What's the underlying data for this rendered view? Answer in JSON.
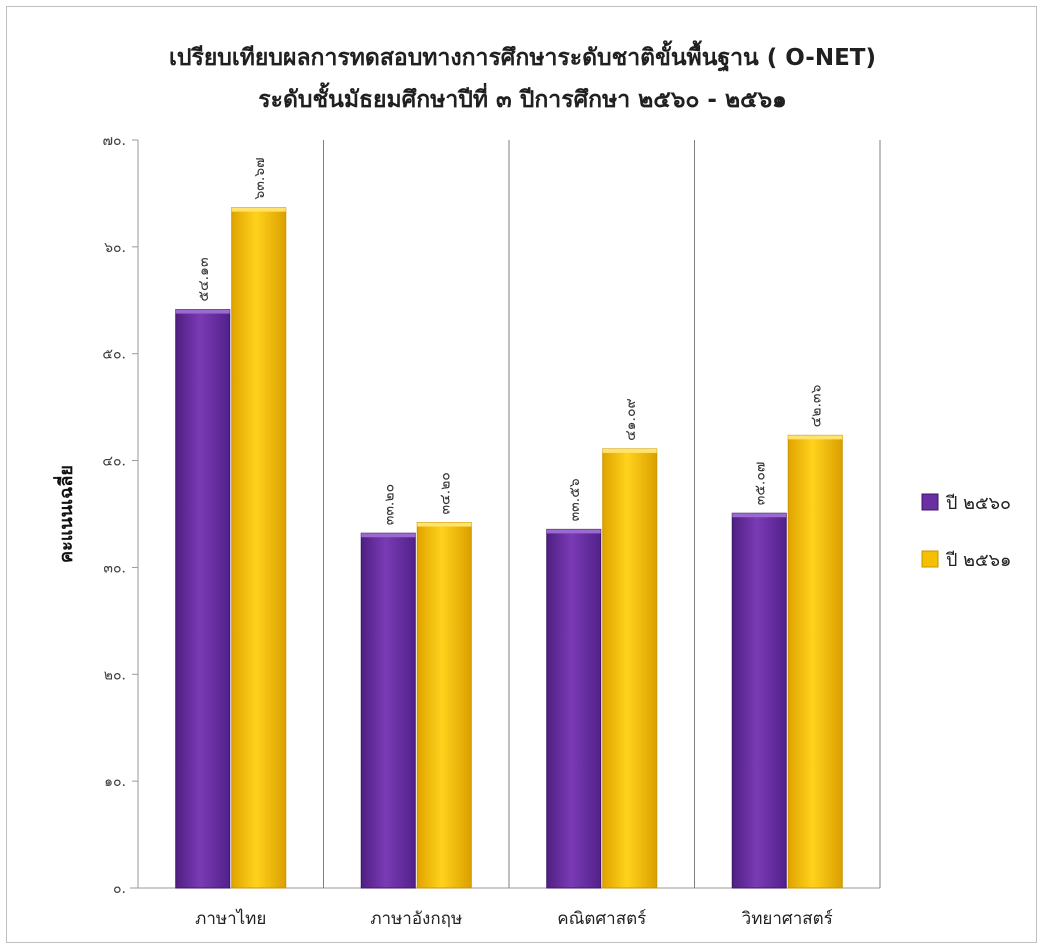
{
  "chart_data": {
    "type": "bar",
    "title": "เปรียบเทียบผลการทดสอบทางการศึกษาระดับชาติขั้นพื้นฐาน ( O-NET)",
    "subtitle": "ระดับชั้นมัธยมศึกษาปีที่ ๓   ปีการศึกษา ๒๕๖๐ - ๒๕๖๑",
    "xlabel": "",
    "ylabel": "คะแนนเฉลี่ย",
    "ylim": [
      0,
      70
    ],
    "yticks": [
      0,
      10,
      20,
      30,
      40,
      50,
      60,
      70
    ],
    "ytick_labels": [
      "๐.",
      "๑๐.",
      "๒๐.",
      "๓๐.",
      "๔๐.",
      "๕๐.",
      "๖๐.",
      "๗๐."
    ],
    "categories": [
      "ภาษาไทย",
      "ภาษาอังกฤษ",
      "คณิตศาสตร์",
      "วิทยาศาสตร์"
    ],
    "series": [
      {
        "name": "ปี ๒๕๖๐",
        "color": "#6a2fa0",
        "values": [
          54.13,
          33.2,
          33.56,
          35.07
        ],
        "labels": [
          "๕๔.๑๓",
          "๓๓.๒๐",
          "๓๓.๕๖",
          "๓๕.๐๗"
        ]
      },
      {
        "name": "ปี ๒๕๖๑",
        "color": "#f5c000",
        "values": [
          63.67,
          34.2,
          41.09,
          42.36
        ],
        "labels": [
          "๖๓.๖๗",
          "๓๔.๒๐",
          "๔๑.๐๙",
          "๔๒.๓๖"
        ]
      }
    ],
    "grid": "vertical separators between categories",
    "legend": "right"
  }
}
